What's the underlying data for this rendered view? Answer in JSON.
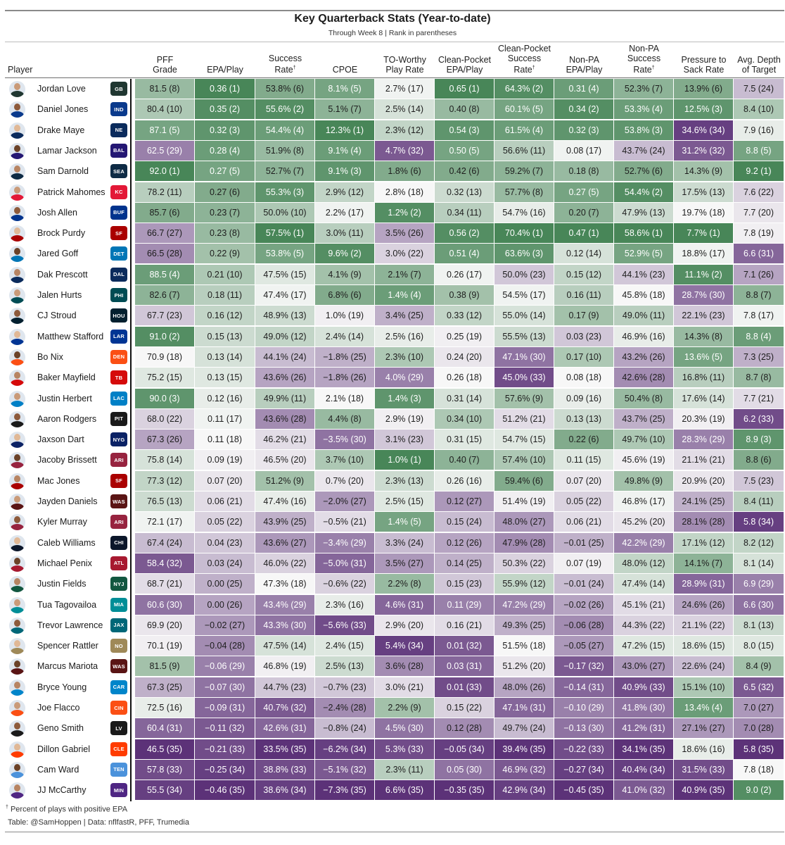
{
  "title": "Key Quarterback Stats (Year-to-date)",
  "subtitle": "Through Week 8 | Rank in parentheses",
  "headers": {
    "player": "Player",
    "pff": [
      "PFF",
      "Grade"
    ],
    "epa": [
      "EPA/Play"
    ],
    "sr": [
      "Success",
      "Rate"
    ],
    "cpoe": [
      "CPOE"
    ],
    "tow": [
      "TO-Worthy",
      "Play Rate"
    ],
    "cp_epa": [
      "Clean-Pocket",
      "EPA/Play"
    ],
    "cp_sr": [
      "Clean-Pocket",
      "Success",
      "Rate"
    ],
    "npa_epa": [
      "Non-PA",
      "EPA/Play"
    ],
    "npa_sr": [
      "Non-PA",
      "Success",
      "Rate"
    ],
    "p2s": [
      "Pressure to",
      "Sack Rate"
    ],
    "adot": [
      "Avg. Depth",
      "of Target"
    ],
    "dagger": "†"
  },
  "rows": [
    {
      "player": "Jordan Love",
      "team": "GB",
      "cells": [
        "81.5 (8)",
        "0.36 (1)",
        "53.8% (6)",
        "8.1% (5)",
        "2.7% (17)",
        "0.65 (1)",
        "64.3% (2)",
        "0.31 (4)",
        "52.3% (7)",
        "13.9% (6)",
        "7.5 (24)"
      ]
    },
    {
      "player": "Daniel Jones",
      "team": "IND",
      "cells": [
        "80.4 (10)",
        "0.35 (2)",
        "55.6% (2)",
        "5.1% (7)",
        "2.5% (14)",
        "0.40 (8)",
        "60.1% (5)",
        "0.34 (2)",
        "53.3% (4)",
        "12.5% (3)",
        "8.4 (10)"
      ]
    },
    {
      "player": "Drake Maye",
      "team": "NE",
      "cells": [
        "87.1 (5)",
        "0.32 (3)",
        "54.4% (4)",
        "12.3% (1)",
        "2.3% (12)",
        "0.54 (3)",
        "61.5% (4)",
        "0.32 (3)",
        "53.8% (3)",
        "34.6% (34)",
        "7.9 (16)"
      ]
    },
    {
      "player": "Lamar Jackson",
      "team": "BAL",
      "cells": [
        "62.5 (29)",
        "0.28 (4)",
        "51.9% (8)",
        "9.1% (4)",
        "4.7% (32)",
        "0.50 (5)",
        "56.6% (11)",
        "0.08 (17)",
        "43.7% (24)",
        "31.2% (32)",
        "8.8 (5)"
      ]
    },
    {
      "player": "Sam Darnold",
      "team": "SEA",
      "cells": [
        "92.0 (1)",
        "0.27 (5)",
        "52.7% (7)",
        "9.1% (3)",
        "1.8% (6)",
        "0.42 (6)",
        "59.2% (7)",
        "0.18 (8)",
        "52.7% (6)",
        "14.3% (9)",
        "9.2 (1)"
      ]
    },
    {
      "player": "Patrick Mahomes",
      "team": "KC",
      "cells": [
        "78.2 (11)",
        "0.27 (6)",
        "55.3% (3)",
        "2.9% (12)",
        "2.8% (18)",
        "0.32 (13)",
        "57.7% (8)",
        "0.27 (5)",
        "54.4% (2)",
        "17.5% (13)",
        "7.6 (22)"
      ]
    },
    {
      "player": "Josh Allen",
      "team": "BUF",
      "cells": [
        "85.7 (6)",
        "0.23 (7)",
        "50.0% (10)",
        "2.2% (17)",
        "1.2% (2)",
        "0.34 (11)",
        "54.7% (16)",
        "0.20 (7)",
        "47.9% (13)",
        "19.7% (18)",
        "7.7 (20)"
      ]
    },
    {
      "player": "Brock Purdy",
      "team": "SF",
      "cells": [
        "66.7 (27)",
        "0.23 (8)",
        "57.5% (1)",
        "3.0% (11)",
        "3.5% (26)",
        "0.56 (2)",
        "70.4% (1)",
        "0.47 (1)",
        "58.6% (1)",
        "7.7% (1)",
        "7.8 (19)"
      ]
    },
    {
      "player": "Jared Goff",
      "team": "DET",
      "cells": [
        "66.5 (28)",
        "0.22 (9)",
        "53.8% (5)",
        "9.6% (2)",
        "3.0% (22)",
        "0.51 (4)",
        "63.6% (3)",
        "0.12 (14)",
        "52.9% (5)",
        "18.8% (17)",
        "6.6 (31)"
      ]
    },
    {
      "player": "Dak Prescott",
      "team": "DAL",
      "cells": [
        "88.5 (4)",
        "0.21 (10)",
        "47.5% (15)",
        "4.1% (9)",
        "2.1% (7)",
        "0.26 (17)",
        "50.0% (23)",
        "0.15 (12)",
        "44.1% (23)",
        "11.1% (2)",
        "7.1 (26)"
      ]
    },
    {
      "player": "Jalen Hurts",
      "team": "PHI",
      "cells": [
        "82.6 (7)",
        "0.18 (11)",
        "47.4% (17)",
        "6.8% (6)",
        "1.4% (4)",
        "0.38 (9)",
        "54.5% (17)",
        "0.16 (11)",
        "45.8% (18)",
        "28.7% (30)",
        "8.8 (7)"
      ]
    },
    {
      "player": "CJ Stroud",
      "team": "HOU",
      "cells": [
        "67.7 (23)",
        "0.16 (12)",
        "48.9% (13)",
        "1.0% (19)",
        "3.4% (25)",
        "0.33 (12)",
        "55.0% (14)",
        "0.17 (9)",
        "49.0% (11)",
        "22.1% (23)",
        "7.8 (17)"
      ]
    },
    {
      "player": "Matthew Stafford",
      "team": "LAR",
      "cells": [
        "91.0 (2)",
        "0.15 (13)",
        "49.0% (12)",
        "2.4% (14)",
        "2.5% (16)",
        "0.25 (19)",
        "55.5% (13)",
        "0.03 (23)",
        "46.9% (16)",
        "14.3% (8)",
        "8.8 (4)"
      ]
    },
    {
      "player": "Bo Nix",
      "team": "DEN",
      "cells": [
        "70.9 (18)",
        "0.13 (14)",
        "44.1% (24)",
        "−1.8% (25)",
        "2.3% (10)",
        "0.24 (20)",
        "47.1% (30)",
        "0.17 (10)",
        "43.2% (26)",
        "13.6% (5)",
        "7.3 (25)"
      ]
    },
    {
      "player": "Baker Mayfield",
      "team": "TB",
      "cells": [
        "75.2 (15)",
        "0.13 (15)",
        "43.6% (26)",
        "−1.8% (26)",
        "4.0% (29)",
        "0.26 (18)",
        "45.0% (33)",
        "0.08 (18)",
        "42.6% (28)",
        "16.8% (11)",
        "8.7 (8)"
      ]
    },
    {
      "player": "Justin Herbert",
      "team": "LAC",
      "cells": [
        "90.0 (3)",
        "0.12 (16)",
        "49.9% (11)",
        "2.1% (18)",
        "1.4% (3)",
        "0.31 (14)",
        "57.6% (9)",
        "0.09 (16)",
        "50.4% (8)",
        "17.6% (14)",
        "7.7 (21)"
      ]
    },
    {
      "player": "Aaron Rodgers",
      "team": "PIT",
      "cells": [
        "68.0 (22)",
        "0.11 (17)",
        "43.6% (28)",
        "4.4% (8)",
        "2.9% (19)",
        "0.34 (10)",
        "51.2% (21)",
        "0.13 (13)",
        "43.7% (25)",
        "20.3% (19)",
        "6.2 (33)"
      ]
    },
    {
      "player": "Jaxson Dart",
      "team": "NYG",
      "cells": [
        "67.3 (26)",
        "0.11 (18)",
        "46.2% (21)",
        "−3.5% (30)",
        "3.1% (23)",
        "0.31 (15)",
        "54.7% (15)",
        "0.22 (6)",
        "49.7% (10)",
        "28.3% (29)",
        "8.9 (3)"
      ]
    },
    {
      "player": "Jacoby Brissett",
      "team": "ARI",
      "cells": [
        "75.8 (14)",
        "0.09 (19)",
        "46.5% (20)",
        "3.7% (10)",
        "1.0% (1)",
        "0.40 (7)",
        "57.4% (10)",
        "0.11 (15)",
        "45.6% (19)",
        "21.1% (21)",
        "8.8 (6)"
      ]
    },
    {
      "player": "Mac Jones",
      "team": "SF",
      "cells": [
        "77.3 (12)",
        "0.07 (20)",
        "51.2% (9)",
        "0.7% (20)",
        "2.3% (13)",
        "0.26 (16)",
        "59.4% (6)",
        "0.07 (20)",
        "49.8% (9)",
        "20.9% (20)",
        "7.5 (23)"
      ]
    },
    {
      "player": "Jayden Daniels",
      "team": "WAS",
      "cells": [
        "76.5 (13)",
        "0.06 (21)",
        "47.4% (16)",
        "−2.0% (27)",
        "2.5% (15)",
        "0.12 (27)",
        "51.4% (19)",
        "0.05 (22)",
        "46.8% (17)",
        "24.1% (25)",
        "8.4 (11)"
      ]
    },
    {
      "player": "Kyler Murray",
      "team": "ARI",
      "cells": [
        "72.1 (17)",
        "0.05 (22)",
        "43.9% (25)",
        "−0.5% (21)",
        "1.4% (5)",
        "0.15 (24)",
        "48.0% (27)",
        "0.06 (21)",
        "45.2% (20)",
        "28.1% (28)",
        "5.8 (34)"
      ]
    },
    {
      "player": "Caleb Williams",
      "team": "CHI",
      "cells": [
        "67.4 (24)",
        "0.04 (23)",
        "43.6% (27)",
        "−3.4% (29)",
        "3.3% (24)",
        "0.12 (26)",
        "47.9% (28)",
        "−0.01 (25)",
        "42.2% (29)",
        "17.1% (12)",
        "8.2 (12)"
      ]
    },
    {
      "player": "Michael Penix",
      "team": "ATL",
      "cells": [
        "58.4 (32)",
        "0.03 (24)",
        "46.0% (22)",
        "−5.0% (31)",
        "3.5% (27)",
        "0.14 (25)",
        "50.3% (22)",
        "0.07 (19)",
        "48.0% (12)",
        "14.1% (7)",
        "8.1 (14)"
      ]
    },
    {
      "player": "Justin Fields",
      "team": "NYJ",
      "cells": [
        "68.7 (21)",
        "0.00 (25)",
        "47.3% (18)",
        "−0.6% (22)",
        "2.2% (8)",
        "0.15 (23)",
        "55.9% (12)",
        "−0.01 (24)",
        "47.4% (14)",
        "28.9% (31)",
        "6.9 (29)"
      ]
    },
    {
      "player": "Tua Tagovailoa",
      "team": "MIA",
      "cells": [
        "60.6 (30)",
        "0.00 (26)",
        "43.4% (29)",
        "2.3% (16)",
        "4.6% (31)",
        "0.11 (29)",
        "47.2% (29)",
        "−0.02 (26)",
        "45.1% (21)",
        "24.6% (26)",
        "6.6 (30)"
      ]
    },
    {
      "player": "Trevor Lawrence",
      "team": "JAX",
      "cells": [
        "69.9 (20)",
        "−0.02 (27)",
        "43.3% (30)",
        "−5.6% (33)",
        "2.9% (20)",
        "0.16 (21)",
        "49.3% (25)",
        "−0.06 (28)",
        "44.3% (22)",
        "21.1% (22)",
        "8.1 (13)"
      ]
    },
    {
      "player": "Spencer Rattler",
      "team": "NO",
      "cells": [
        "70.1 (19)",
        "−0.04 (28)",
        "47.5% (14)",
        "2.4% (15)",
        "5.4% (34)",
        "0.01 (32)",
        "51.5% (18)",
        "−0.05 (27)",
        "47.2% (15)",
        "18.6% (15)",
        "8.0 (15)"
      ]
    },
    {
      "player": "Marcus Mariota",
      "team": "WAS",
      "cells": [
        "81.5 (9)",
        "−0.06 (29)",
        "46.8% (19)",
        "2.5% (13)",
        "3.6% (28)",
        "0.03 (31)",
        "51.2% (20)",
        "−0.17 (32)",
        "43.0% (27)",
        "22.6% (24)",
        "8.4 (9)"
      ]
    },
    {
      "player": "Bryce Young",
      "team": "CAR",
      "cells": [
        "67.3 (25)",
        "−0.07 (30)",
        "44.7% (23)",
        "−0.7% (23)",
        "3.0% (21)",
        "0.01 (33)",
        "48.0% (26)",
        "−0.14 (31)",
        "40.9% (33)",
        "15.1% (10)",
        "6.5 (32)"
      ]
    },
    {
      "player": "Joe Flacco",
      "team": "CIN",
      "cells": [
        "72.5 (16)",
        "−0.09 (31)",
        "40.7% (32)",
        "−2.4% (28)",
        "2.2% (9)",
        "0.15 (22)",
        "47.1% (31)",
        "−0.10 (29)",
        "41.8% (30)",
        "13.4% (4)",
        "7.0 (27)"
      ]
    },
    {
      "player": "Geno Smith",
      "team": "LV",
      "cells": [
        "60.4 (31)",
        "−0.11 (32)",
        "42.6% (31)",
        "−0.8% (24)",
        "4.5% (30)",
        "0.12 (28)",
        "49.7% (24)",
        "−0.13 (30)",
        "41.2% (31)",
        "27.1% (27)",
        "7.0 (28)"
      ]
    },
    {
      "player": "Dillon Gabriel",
      "team": "CLE",
      "cells": [
        "46.5 (35)",
        "−0.21 (33)",
        "33.5% (35)",
        "−6.2% (34)",
        "5.3% (33)",
        "−0.05 (34)",
        "39.4% (35)",
        "−0.22 (33)",
        "34.1% (35)",
        "18.6% (16)",
        "5.8 (35)"
      ]
    },
    {
      "player": "Cam Ward",
      "team": "TEN",
      "cells": [
        "57.8 (33)",
        "−0.25 (34)",
        "38.8% (33)",
        "−5.1% (32)",
        "2.3% (11)",
        "0.05 (30)",
        "46.9% (32)",
        "−0.27 (34)",
        "40.4% (34)",
        "31.5% (33)",
        "7.8 (18)"
      ]
    },
    {
      "player": "JJ McCarthy",
      "team": "MIN",
      "cells": [
        "55.5 (34)",
        "−0.46 (35)",
        "38.6% (34)",
        "−7.3% (35)",
        "6.6% (35)",
        "−0.35 (35)",
        "42.9% (34)",
        "−0.45 (35)",
        "41.0% (32)",
        "40.9% (35)",
        "9.0 (2)"
      ]
    }
  ],
  "team_colors": {
    "GB": "#203731",
    "IND": "#0a3a8c",
    "NE": "#0b2b5c",
    "BAL": "#241773",
    "SEA": "#0e2b45",
    "KC": "#e31837",
    "BUF": "#00338d",
    "SF": "#aa0000",
    "DET": "#0076b6",
    "DAL": "#0b2b5c",
    "PHI": "#004c54",
    "HOU": "#03202f",
    "LAR": "#003594",
    "DEN": "#fb4f14",
    "TB": "#d50a0a",
    "LAC": "#0080c6",
    "PIT": "#1a1a1a",
    "NYG": "#0b2265",
    "ARI": "#97233f",
    "WAS": "#5a1414",
    "CHI": "#0b162a",
    "ATL": "#a71930",
    "NYJ": "#125740",
    "MIA": "#008e97",
    "JAX": "#006778",
    "NO": "#9f8958",
    "CAR": "#0085ca",
    "CIN": "#fb4f14",
    "LV": "#1a1a1a",
    "CLE": "#ff3c00",
    "TEN": "#4b92db",
    "MIN": "#4f2683"
  },
  "footnote": "Percent of plays with positive EPA",
  "credit": "Table: @SamHoppen | Data: nflfastR, PFF, Trumedia"
}
